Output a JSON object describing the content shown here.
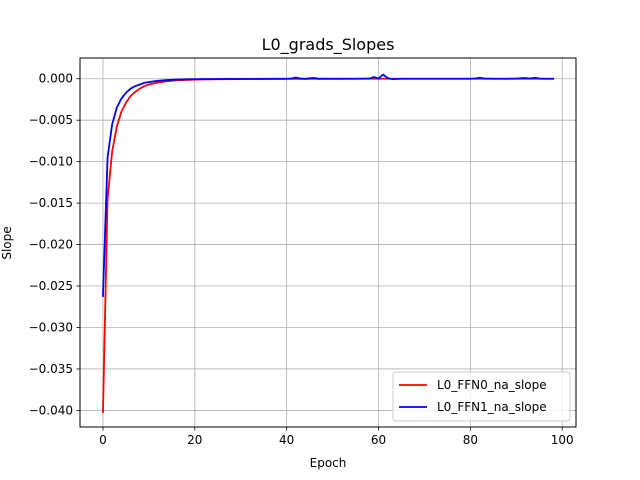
{
  "chart_data": {
    "type": "line",
    "title": "L0_grads_Slopes",
    "xlabel": "Epoch",
    "ylabel": "Slope",
    "xlim": [
      -5,
      103
    ],
    "ylim": [
      -0.042,
      0.0025
    ],
    "xticks": [
      0,
      20,
      40,
      60,
      80,
      100
    ],
    "xtick_labels": [
      "0",
      "20",
      "40",
      "60",
      "80",
      "100"
    ],
    "yticks": [
      0.0,
      -0.005,
      -0.01,
      -0.015,
      -0.02,
      -0.025,
      -0.03,
      -0.035,
      -0.04
    ],
    "ytick_labels": [
      "0.000",
      "−0.005",
      "−0.010",
      "−0.015",
      "−0.020",
      "−0.025",
      "−0.030",
      "−0.035",
      "−0.040"
    ],
    "grid": true,
    "legend_position": "bottom-right",
    "series": [
      {
        "name": "L0_FFN0_na_slope",
        "color": "#ff0000",
        "x": [
          0,
          1,
          2,
          3,
          4,
          5,
          6,
          7,
          8,
          9,
          10,
          12,
          14,
          16,
          18,
          20,
          25,
          30,
          35,
          40,
          45,
          50,
          55,
          60,
          65,
          70,
          75,
          80,
          85,
          90,
          95,
          98
        ],
        "y": [
          -0.0402,
          -0.0145,
          -0.0088,
          -0.0058,
          -0.004,
          -0.0029,
          -0.0021,
          -0.0016,
          -0.0012,
          -0.0009,
          -0.0007,
          -0.00045,
          -0.0003,
          -0.0002,
          -0.00015,
          -0.0001,
          -6e-05,
          -4e-05,
          -3e-05,
          -2e-05,
          -1e-05,
          -1e-05,
          0,
          0,
          0,
          0,
          0,
          0,
          0,
          0,
          0,
          0
        ]
      },
      {
        "name": "L0_FFN1_na_slope",
        "color": "#0000ff",
        "x": [
          0,
          1,
          2,
          3,
          4,
          5,
          6,
          7,
          8,
          9,
          10,
          12,
          14,
          16,
          18,
          20,
          25,
          30,
          35,
          40,
          41,
          42,
          43,
          44,
          45,
          46,
          47,
          48,
          50,
          55,
          58,
          59,
          60,
          61,
          62,
          63,
          65,
          70,
          75,
          80,
          81,
          82,
          83,
          85,
          88,
          90,
          92,
          93,
          94,
          95,
          96,
          98
        ],
        "y": [
          -0.0262,
          -0.0095,
          -0.0055,
          -0.0035,
          -0.0024,
          -0.0017,
          -0.0012,
          -0.0009,
          -0.0007,
          -0.0005,
          -0.0004,
          -0.00025,
          -0.00016,
          -0.0001,
          -7e-05,
          -5e-05,
          -3e-05,
          -2e-05,
          -1e-05,
          0,
          2e-05,
          0.00015,
          2e-05,
          -2e-05,
          5e-05,
          0.0001,
          -2e-05,
          1e-05,
          0,
          0,
          2e-05,
          0.0002,
          3e-05,
          0.0005,
          8e-05,
          -5e-05,
          0,
          0,
          0,
          0,
          3e-05,
          0.00012,
          2e-05,
          0,
          0,
          2e-05,
          8e-05,
          1e-05,
          0.00012,
          2e-05,
          0,
          0
        ]
      }
    ]
  }
}
